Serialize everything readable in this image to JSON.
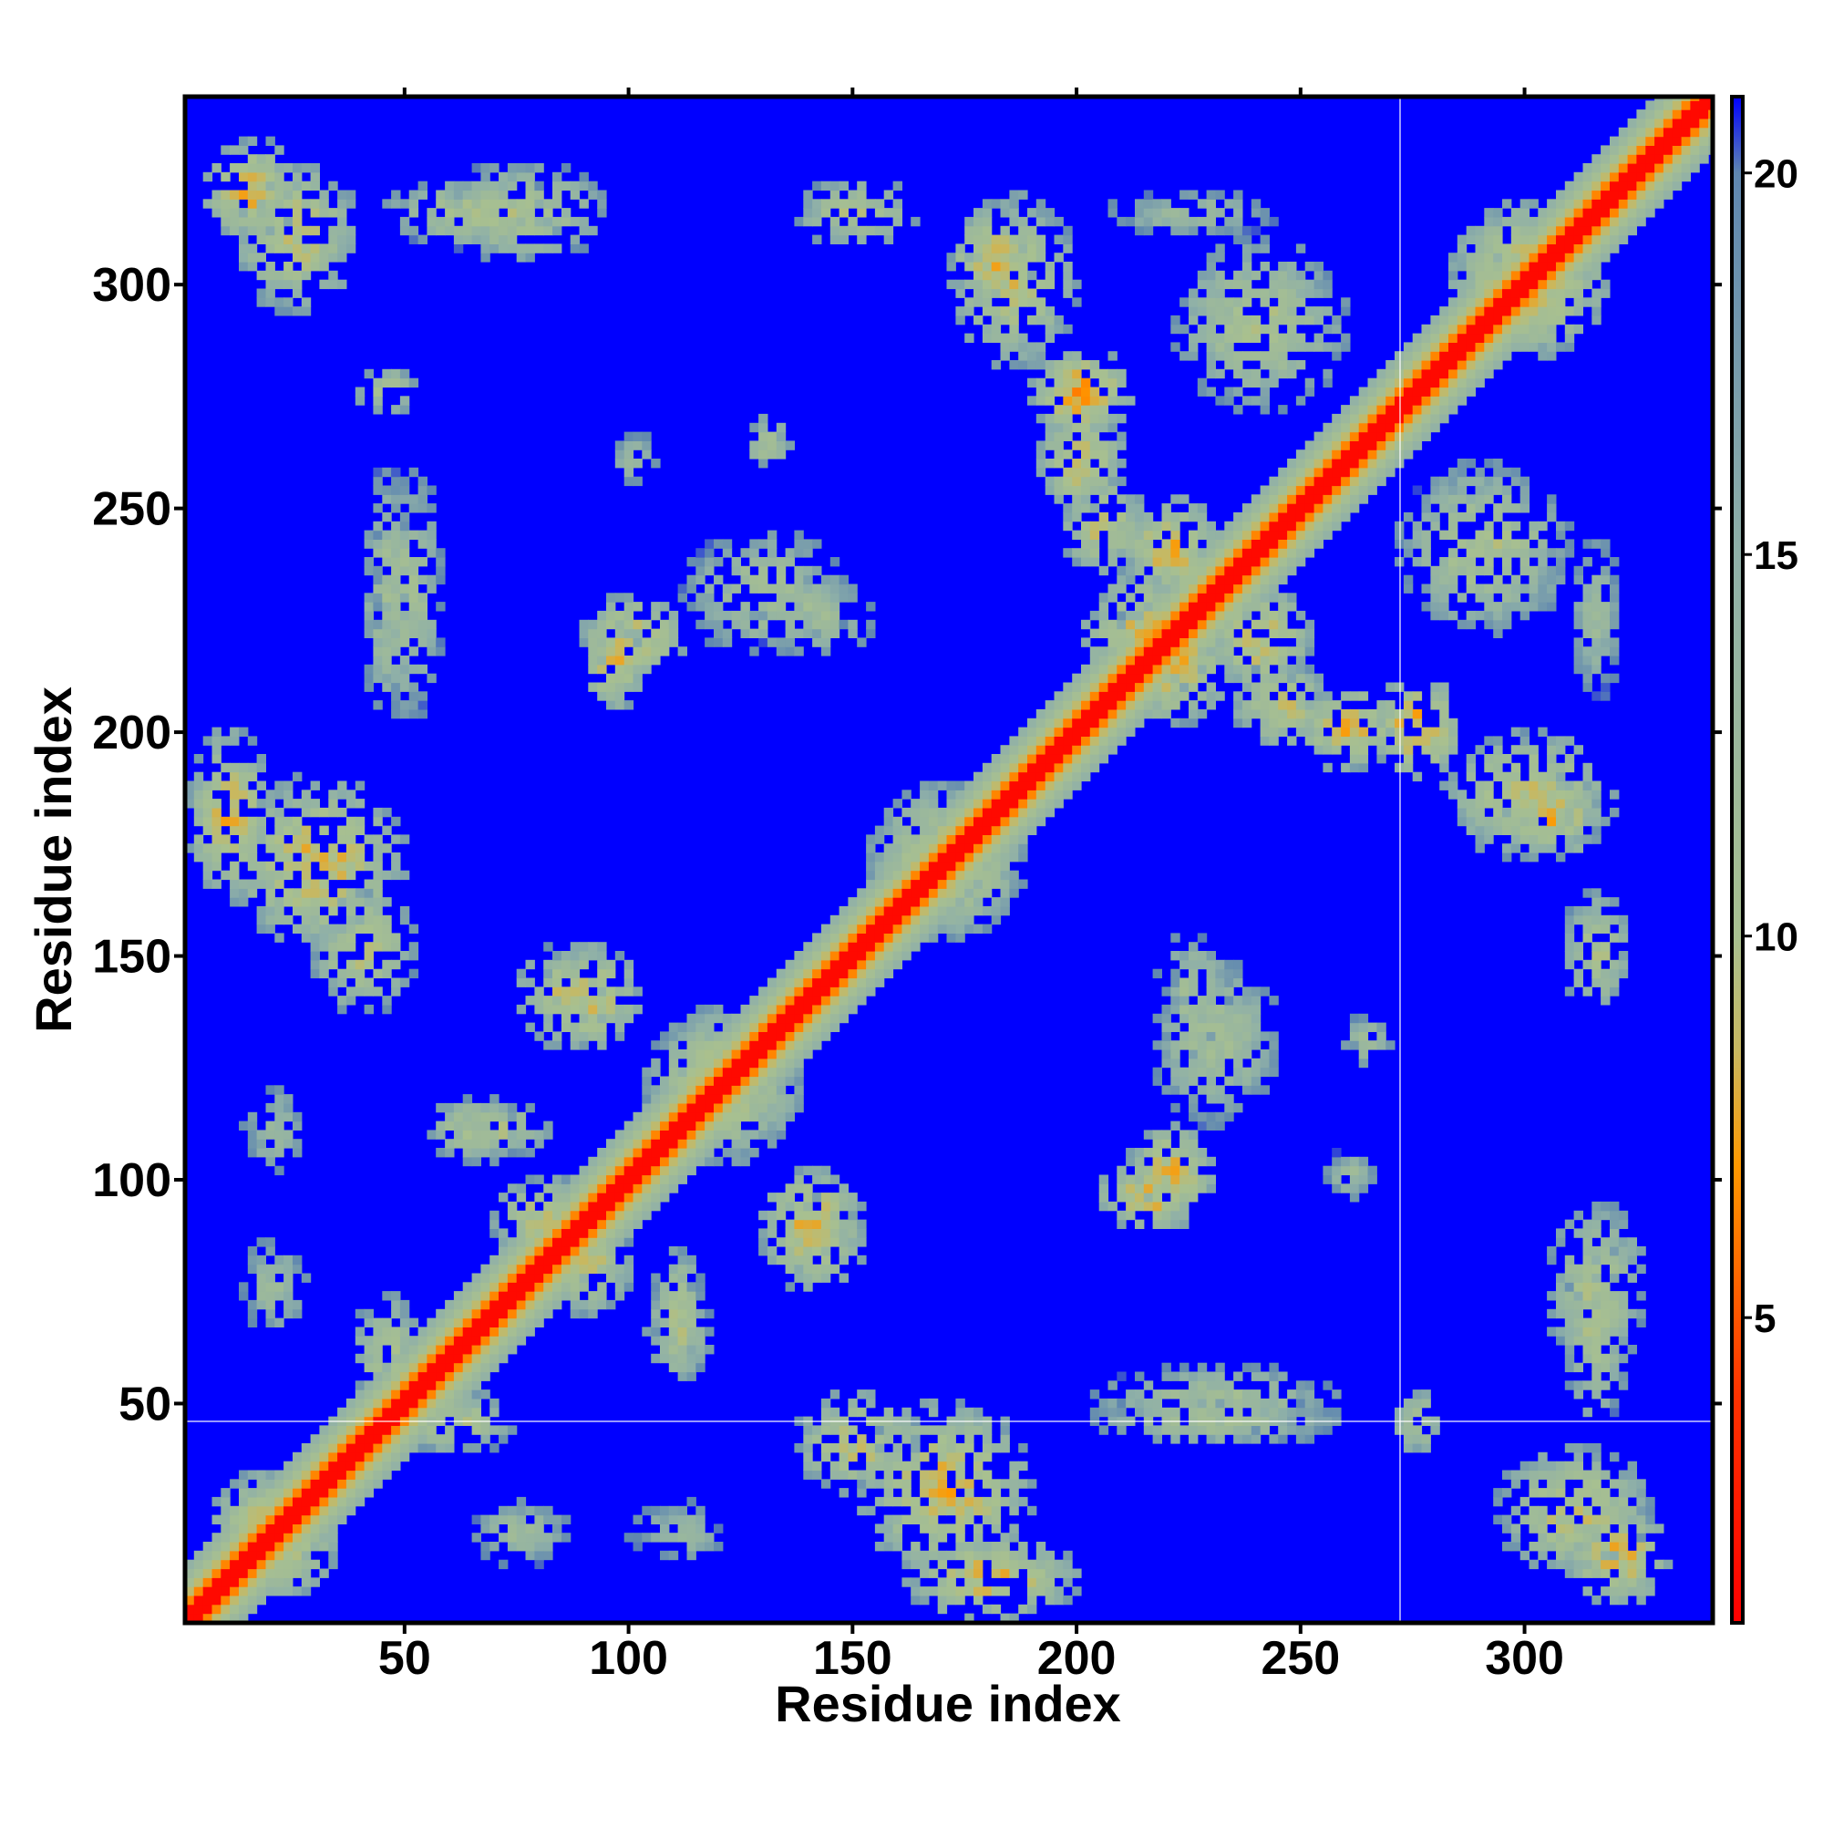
{
  "chart_data": {
    "type": "heatmap",
    "title": "",
    "xlabel": "Residue index",
    "ylabel": "Residue index",
    "xlim": [
      1,
      342
    ],
    "ylim": [
      1,
      342
    ],
    "x_ticks": [
      50,
      100,
      150,
      200,
      250,
      300
    ],
    "y_ticks": [
      50,
      100,
      150,
      200,
      250,
      300
    ],
    "x_tick_labels": [
      "50",
      "100",
      "150",
      "200",
      "250",
      "300"
    ],
    "y_tick_labels": [
      "50",
      "100",
      "150",
      "200",
      "250",
      "300"
    ],
    "colorbar": {
      "range": [
        1,
        21
      ],
      "ticks": [
        5,
        10,
        15,
        20
      ],
      "tick_labels": [
        "5",
        "10",
        "15",
        "20"
      ],
      "colors": [
        {
          "value": 1,
          "color": "#ff0000"
        },
        {
          "value": 4,
          "color": "#ff3300"
        },
        {
          "value": 7,
          "color": "#ff9900"
        },
        {
          "value": 8.5,
          "color": "#c8b860"
        },
        {
          "value": 10,
          "color": "#a8c090"
        },
        {
          "value": 15,
          "color": "#8fb0a8"
        },
        {
          "value": 20,
          "color": "#5f87b0"
        },
        {
          "value": 21,
          "color": "#0000ff"
        }
      ]
    },
    "background_color": "#0000ff",
    "diagonal_color": "#ff0000",
    "contact_clusters": [
      {
        "x": 15,
        "y": 320,
        "sx": 12,
        "sy": 12,
        "v": 7
      },
      {
        "x": 65,
        "y": 315,
        "sx": 22,
        "sy": 8,
        "v": 9
      },
      {
        "x": 45,
        "y": 275,
        "sx": 8,
        "sy": 6,
        "v": 9
      },
      {
        "x": 10,
        "y": 180,
        "sx": 10,
        "sy": 20,
        "v": 7
      },
      {
        "x": 40,
        "y": 150,
        "sx": 12,
        "sy": 15,
        "v": 8
      },
      {
        "x": 50,
        "y": 230,
        "sx": 8,
        "sy": 30,
        "v": 10
      },
      {
        "x": 100,
        "y": 220,
        "sx": 12,
        "sy": 10,
        "v": 7
      },
      {
        "x": 140,
        "y": 225,
        "sx": 15,
        "sy": 10,
        "v": 10
      },
      {
        "x": 130,
        "y": 265,
        "sx": 5,
        "sy": 5,
        "v": 10
      },
      {
        "x": 100,
        "y": 260,
        "sx": 6,
        "sy": 6,
        "v": 11
      },
      {
        "x": 150,
        "y": 315,
        "sx": 15,
        "sy": 8,
        "v": 9
      },
      {
        "x": 180,
        "y": 305,
        "sx": 10,
        "sy": 12,
        "v": 7
      },
      {
        "x": 200,
        "y": 275,
        "sx": 12,
        "sy": 10,
        "v": 6
      },
      {
        "x": 240,
        "y": 290,
        "sx": 20,
        "sy": 20,
        "v": 9
      },
      {
        "x": 300,
        "y": 300,
        "sx": 18,
        "sy": 18,
        "v": 7
      },
      {
        "x": 315,
        "y": 225,
        "sx": 6,
        "sy": 20,
        "v": 11
      },
      {
        "x": 300,
        "y": 185,
        "sx": 20,
        "sy": 15,
        "v": 8
      },
      {
        "x": 260,
        "y": 200,
        "sx": 12,
        "sy": 10,
        "v": 7
      },
      {
        "x": 215,
        "y": 220,
        "sx": 15,
        "sy": 15,
        "v": 7
      },
      {
        "x": 240,
        "y": 220,
        "sx": 12,
        "sy": 12,
        "v": 7
      },
      {
        "x": 205,
        "y": 245,
        "sx": 10,
        "sy": 12,
        "v": 8
      },
      {
        "x": 230,
        "y": 130,
        "sx": 15,
        "sy": 20,
        "v": 10
      },
      {
        "x": 215,
        "y": 95,
        "sx": 12,
        "sy": 8,
        "v": 7
      },
      {
        "x": 262,
        "y": 130,
        "sx": 4,
        "sy": 6,
        "v": 10
      },
      {
        "x": 260,
        "y": 100,
        "sx": 6,
        "sy": 5,
        "v": 11
      },
      {
        "x": 315,
        "y": 75,
        "sx": 12,
        "sy": 20,
        "v": 9
      },
      {
        "x": 310,
        "y": 25,
        "sx": 18,
        "sy": 15,
        "v": 8
      },
      {
        "x": 230,
        "y": 45,
        "sx": 30,
        "sy": 6,
        "v": 10
      },
      {
        "x": 170,
        "y": 30,
        "sx": 20,
        "sy": 20,
        "v": 7
      },
      {
        "x": 110,
        "y": 20,
        "sx": 12,
        "sy": 8,
        "v": 12
      },
      {
        "x": 20,
        "y": 20,
        "sx": 15,
        "sy": 15,
        "v": 7
      },
      {
        "x": 20,
        "y": 75,
        "sx": 8,
        "sy": 12,
        "v": 11
      },
      {
        "x": 110,
        "y": 65,
        "sx": 8,
        "sy": 12,
        "v": 9
      },
      {
        "x": 120,
        "y": 120,
        "sx": 18,
        "sy": 18,
        "v": 8
      },
      {
        "x": 140,
        "y": 90,
        "sx": 12,
        "sy": 12,
        "v": 7
      },
      {
        "x": 85,
        "y": 140,
        "sx": 12,
        "sy": 12,
        "v": 8
      },
      {
        "x": 70,
        "y": 110,
        "sx": 15,
        "sy": 6,
        "v": 9
      },
      {
        "x": 170,
        "y": 170,
        "sx": 18,
        "sy": 18,
        "v": 8
      },
      {
        "x": 90,
        "y": 80,
        "sx": 10,
        "sy": 12,
        "v": 8
      },
      {
        "x": 60,
        "y": 45,
        "sx": 15,
        "sy": 8,
        "v": 9
      }
    ]
  }
}
